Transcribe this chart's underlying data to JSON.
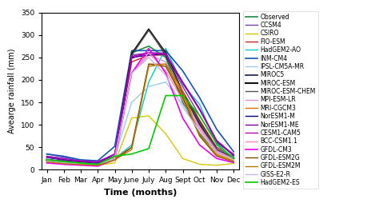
{
  "months": [
    "Jan",
    "Feb",
    "Mar",
    "Apr",
    "May",
    "June",
    "July",
    "Aug",
    "Sept",
    "Oct",
    "Nov",
    "Dec"
  ],
  "ylabel": "Avearge rainfall (mm)",
  "xlabel": "Time (months)",
  "ylim": [
    0,
    350
  ],
  "yticks": [
    0,
    50,
    100,
    150,
    200,
    250,
    300,
    350
  ],
  "series": [
    {
      "label": "Observed",
      "color": "#1a8c3a",
      "lw": 1.2,
      "values": [
        25,
        20,
        18,
        15,
        30,
        260,
        275,
        250,
        150,
        80,
        40,
        30
      ]
    },
    {
      "label": "CCSM4",
      "color": "#7040b0",
      "lw": 1.0,
      "values": [
        35,
        28,
        20,
        18,
        30,
        255,
        260,
        260,
        185,
        120,
        60,
        35
      ]
    },
    {
      "label": "CSIRO",
      "color": "#d4c800",
      "lw": 1.0,
      "values": [
        20,
        15,
        12,
        10,
        15,
        115,
        120,
        80,
        25,
        12,
        10,
        14
      ]
    },
    {
      "label": "FIO-ESM",
      "color": "#cc2222",
      "lw": 1.0,
      "values": [
        22,
        18,
        15,
        12,
        30,
        240,
        255,
        255,
        175,
        110,
        50,
        28
      ]
    },
    {
      "label": "HadGEM2-AO",
      "color": "#00cccc",
      "lw": 1.0,
      "values": [
        30,
        25,
        22,
        18,
        25,
        55,
        195,
        270,
        190,
        145,
        55,
        25
      ]
    },
    {
      "label": "INM-CM4",
      "color": "#1155bb",
      "lw": 1.2,
      "values": [
        35,
        30,
        22,
        20,
        52,
        265,
        265,
        265,
        220,
        160,
        90,
        40
      ]
    },
    {
      "label": "IPSL-CM5A-MR",
      "color": "#99ccee",
      "lw": 1.0,
      "values": [
        25,
        22,
        18,
        15,
        28,
        150,
        185,
        195,
        145,
        95,
        45,
        28
      ]
    },
    {
      "label": "MIROC5",
      "color": "#1a1a50",
      "lw": 1.2,
      "values": [
        20,
        16,
        14,
        12,
        28,
        255,
        313,
        255,
        170,
        100,
        45,
        25
      ]
    },
    {
      "label": "MIROC-ESM",
      "color": "#101010",
      "lw": 1.5,
      "values": [
        22,
        18,
        15,
        12,
        28,
        258,
        312,
        260,
        170,
        105,
        45,
        25
      ]
    },
    {
      "label": "MIROC-ESM-CHEM",
      "color": "#555555",
      "lw": 1.0,
      "values": [
        22,
        18,
        15,
        12,
        28,
        255,
        310,
        258,
        168,
        105,
        45,
        25
      ]
    },
    {
      "label": "MPI-ESM-LR",
      "color": "#e090e0",
      "lw": 1.0,
      "values": [
        22,
        18,
        15,
        12,
        28,
        215,
        255,
        240,
        160,
        95,
        42,
        24
      ]
    },
    {
      "label": "MRI-CGCM3",
      "color": "#e07000",
      "lw": 1.0,
      "values": [
        20,
        16,
        14,
        12,
        25,
        50,
        235,
        235,
        175,
        75,
        35,
        20
      ]
    },
    {
      "label": "NorESM1-M",
      "color": "#000088",
      "lw": 1.0,
      "values": [
        28,
        22,
        18,
        15,
        35,
        250,
        255,
        258,
        195,
        135,
        65,
        32
      ]
    },
    {
      "label": "NorESM1-ME",
      "color": "#7700aa",
      "lw": 1.0,
      "values": [
        28,
        22,
        18,
        15,
        35,
        248,
        260,
        256,
        193,
        133,
        63,
        31
      ]
    },
    {
      "label": "CESM1-CAM5",
      "color": "#bb00bb",
      "lw": 1.0,
      "values": [
        30,
        25,
        20,
        18,
        35,
        252,
        260,
        258,
        195,
        135,
        65,
        33
      ]
    },
    {
      "label": "BCC-CSM1.1",
      "color": "#ff88bb",
      "lw": 1.0,
      "values": [
        22,
        18,
        15,
        12,
        28,
        215,
        260,
        220,
        155,
        90,
        40,
        23
      ]
    },
    {
      "label": "GFDL-CM3",
      "color": "#ee00ee",
      "lw": 1.2,
      "values": [
        15,
        12,
        10,
        8,
        22,
        215,
        270,
        215,
        115,
        55,
        25,
        16
      ]
    },
    {
      "label": "GFDL-ESM2G",
      "color": "#7a4a00",
      "lw": 1.0,
      "values": [
        18,
        14,
        12,
        10,
        22,
        50,
        235,
        230,
        160,
        75,
        30,
        18
      ]
    },
    {
      "label": "GFDL-ESM2M",
      "color": "#b87800",
      "lw": 1.0,
      "values": [
        18,
        14,
        12,
        10,
        22,
        45,
        230,
        235,
        165,
        78,
        32,
        18
      ]
    },
    {
      "label": "GISS-E2-R",
      "color": "#c8b8e0",
      "lw": 1.0,
      "values": [
        20,
        16,
        14,
        12,
        25,
        215,
        250,
        210,
        140,
        85,
        38,
        22
      ]
    },
    {
      "label": "HadGEM2-ES",
      "color": "#00cc00",
      "lw": 1.2,
      "values": [
        22,
        18,
        15,
        12,
        30,
        35,
        47,
        165,
        165,
        120,
        58,
        25
      ]
    }
  ],
  "legend_fontsize": 5.5,
  "axis_label_fontsize": 7,
  "xlabel_fontsize": 8,
  "tick_fontsize": 6.5,
  "figsize": [
    4.74,
    2.59
  ],
  "dpi": 100
}
